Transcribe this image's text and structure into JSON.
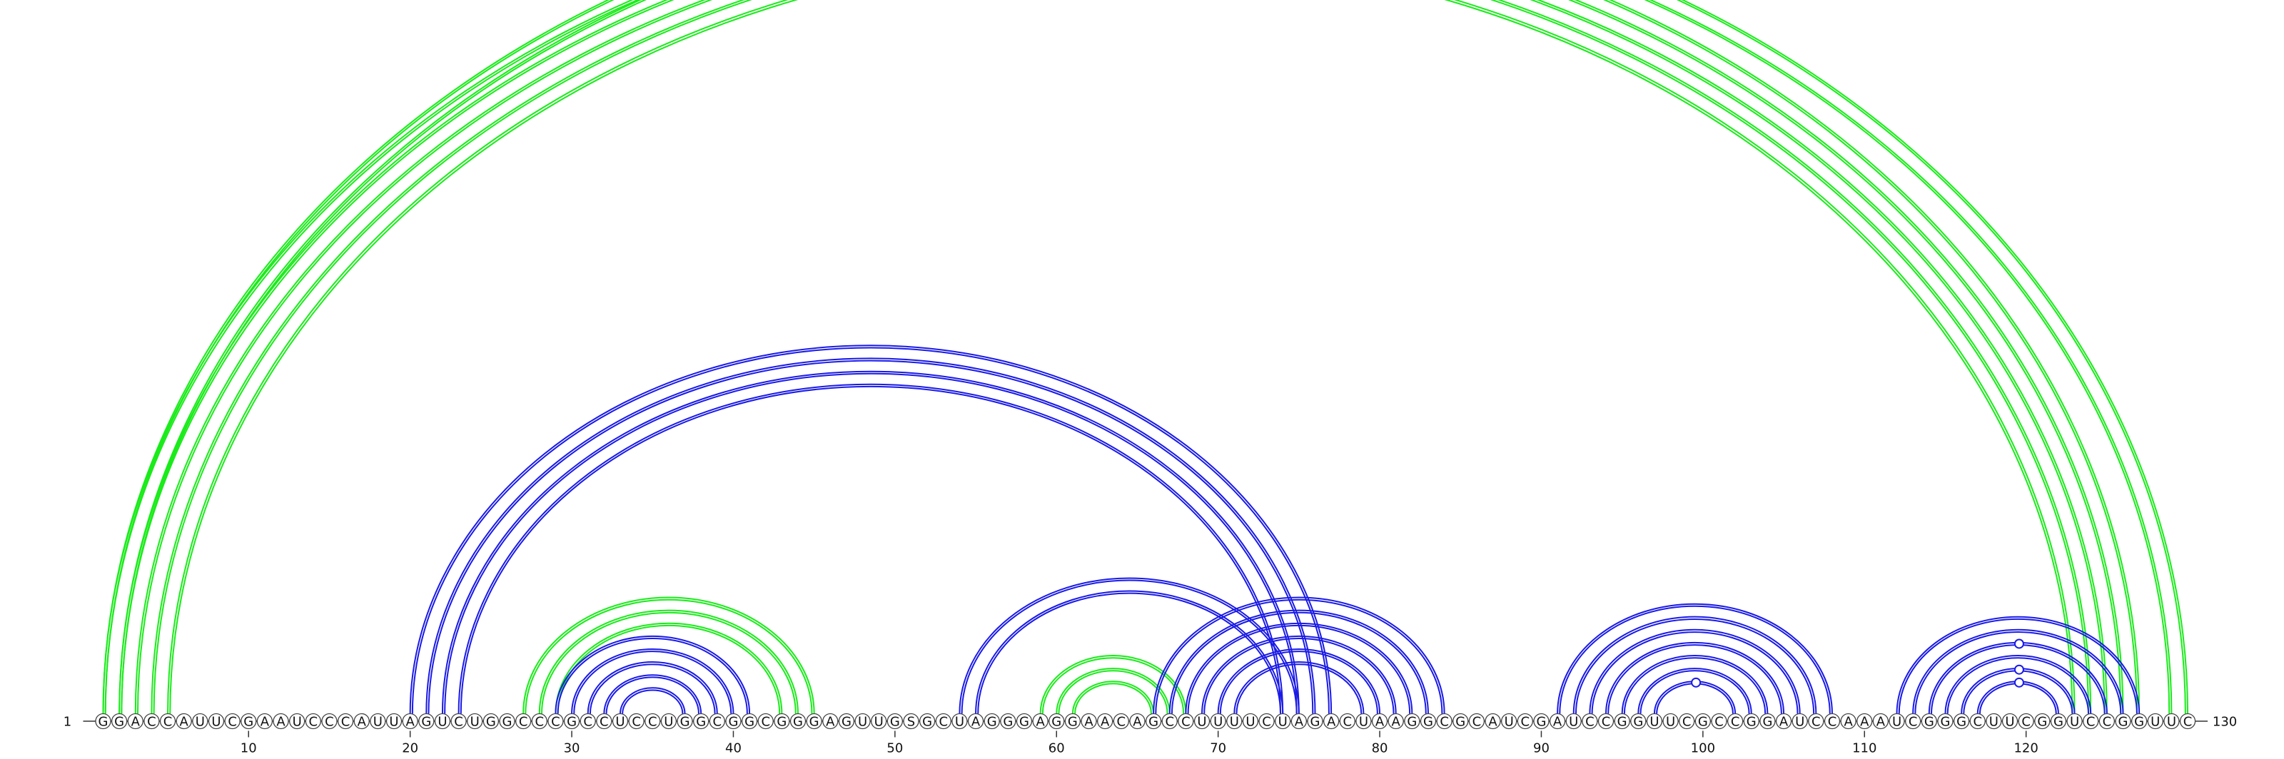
{
  "diagram": {
    "sequence": "GGACCAUUCGAAUCCCAUUAGUCUGGCCCGCCUCCUGGCGGCGGGAGUUGSGCUAGGGAGGAACAGCCUUUUCUAGACUAAGGCGCAUCGAUCCGGUUCGCCGGAUCCAAAUCGGGCUUCGGUCCGGUUC",
    "start_label": "1",
    "end_label": "130",
    "ticks": [
      10,
      20,
      30,
      40,
      50,
      60,
      70,
      80,
      90,
      100,
      110,
      120
    ],
    "colors": {
      "green": "#1aeb1a",
      "blue": "#1a1ae6",
      "nucleotide_stroke": "#444444",
      "text": "#111111"
    },
    "helices": [
      {
        "color": "green",
        "pairs": [
          [
            1,
            127
          ],
          [
            2,
            126
          ],
          [
            3,
            125
          ],
          [
            4,
            124
          ],
          [
            5,
            123
          ]
        ]
      },
      {
        "color": "green",
        "pairs": [
          [
            1,
            130
          ],
          [
            2,
            129
          ]
        ]
      },
      {
        "color": "blue",
        "pairs": [
          [
            20,
            77
          ],
          [
            21,
            76
          ],
          [
            22,
            75
          ],
          [
            23,
            74
          ]
        ]
      },
      {
        "color": "green",
        "pairs": [
          [
            27,
            45
          ],
          [
            28,
            44
          ],
          [
            29,
            43
          ]
        ]
      },
      {
        "color": "blue",
        "pairs": [
          [
            29,
            41
          ],
          [
            30,
            40
          ],
          [
            31,
            39
          ],
          [
            32,
            38
          ],
          [
            33,
            37
          ]
        ]
      },
      {
        "color": "blue",
        "pairs": [
          [
            54,
            75
          ],
          [
            55,
            74
          ]
        ]
      },
      {
        "color": "green",
        "pairs": [
          [
            59,
            68
          ],
          [
            60,
            67
          ],
          [
            61,
            66
          ]
        ]
      },
      {
        "color": "blue",
        "pairs": [
          [
            66,
            84
          ],
          [
            67,
            83
          ],
          [
            68,
            82
          ],
          [
            69,
            81
          ],
          [
            70,
            80
          ],
          [
            71,
            79
          ]
        ]
      },
      {
        "color": "blue",
        "pairs": [
          [
            91,
            108
          ],
          [
            92,
            107
          ],
          [
            93,
            106
          ],
          [
            94,
            105
          ],
          [
            95,
            104
          ],
          [
            96,
            103
          ],
          [
            97,
            102
          ]
        ]
      },
      {
        "color": "blue",
        "pairs": [
          [
            112,
            127
          ],
          [
            113,
            126
          ],
          [
            114,
            125
          ],
          [
            115,
            124
          ],
          [
            116,
            123
          ],
          [
            117,
            122
          ]
        ]
      }
    ],
    "markers": [
      {
        "color": "green",
        "i": 2,
        "j": 129
      },
      {
        "color": "blue",
        "i": 97,
        "j": 102
      },
      {
        "color": "blue",
        "i": 117,
        "j": 122
      },
      {
        "color": "blue",
        "i": 116,
        "j": 123
      },
      {
        "color": "blue",
        "i": 114,
        "j": 125
      }
    ]
  }
}
